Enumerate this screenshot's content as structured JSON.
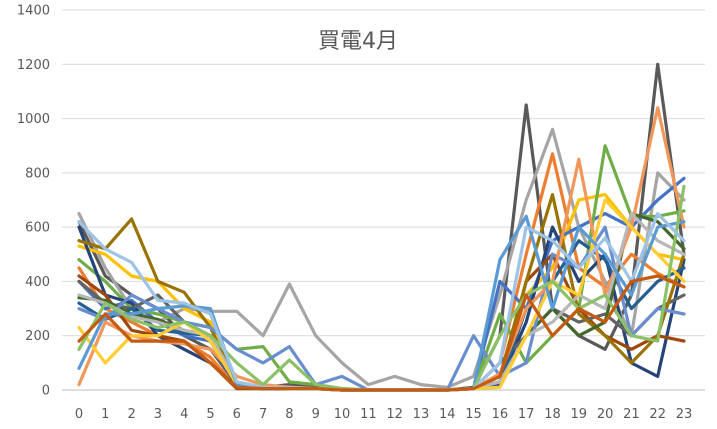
{
  "chart_data": {
    "type": "line",
    "title": "買電4月",
    "xlabel": "",
    "ylabel": "",
    "x": [
      0,
      1,
      2,
      3,
      4,
      5,
      6,
      7,
      8,
      9,
      10,
      11,
      12,
      13,
      14,
      15,
      16,
      17,
      18,
      19,
      20,
      21,
      22,
      23
    ],
    "x_tick_labels": [
      "0",
      "1",
      "2",
      "3",
      "4",
      "5",
      "6",
      "7",
      "8",
      "9",
      "10",
      "11",
      "12",
      "13",
      "14",
      "15",
      "16",
      "17",
      "18",
      "19",
      "20",
      "21",
      "22",
      "23"
    ],
    "ylim": [
      0,
      1400
    ],
    "y_ticks": [
      0,
      200,
      400,
      600,
      800,
      1000,
      1200,
      1400
    ],
    "y_tick_labels": [
      "0",
      "200",
      "400",
      "600",
      "800",
      "1000",
      "1200",
      "1400"
    ],
    "grid": "horizontal",
    "legend": "none",
    "series": [
      {
        "color": "#595959",
        "values": [
          620,
          420,
          350,
          300,
          200,
          150,
          20,
          10,
          20,
          10,
          0,
          0,
          0,
          0,
          0,
          10,
          200,
          1050,
          300,
          200,
          150,
          350,
          1200,
          500
        ]
      },
      {
        "color": "#ed7d31",
        "values": [
          450,
          300,
          250,
          200,
          180,
          120,
          10,
          5,
          5,
          5,
          0,
          0,
          0,
          0,
          0,
          5,
          100,
          500,
          870,
          450,
          380,
          500,
          430,
          380
        ]
      },
      {
        "color": "#a5a5a5",
        "values": [
          650,
          450,
          300,
          250,
          300,
          290,
          290,
          200,
          390,
          200,
          100,
          20,
          50,
          20,
          10,
          50,
          350,
          700,
          960,
          600,
          400,
          200,
          800,
          700
        ]
      },
      {
        "color": "#ffc000",
        "values": [
          530,
          500,
          420,
          400,
          300,
          250,
          20,
          10,
          5,
          5,
          0,
          0,
          0,
          0,
          0,
          5,
          50,
          350,
          450,
          700,
          720,
          600,
          500,
          480
        ]
      },
      {
        "color": "#4472c4",
        "values": [
          400,
          300,
          330,
          250,
          200,
          180,
          10,
          5,
          10,
          5,
          0,
          0,
          0,
          0,
          0,
          5,
          400,
          300,
          550,
          600,
          650,
          600,
          700,
          780
        ]
      },
      {
        "color": "#70ad47",
        "values": [
          480,
          400,
          300,
          280,
          250,
          230,
          150,
          160,
          30,
          20,
          5,
          0,
          0,
          0,
          0,
          5,
          280,
          100,
          200,
          300,
          900,
          640,
          640,
          660
        ]
      },
      {
        "color": "#264478",
        "values": [
          600,
          350,
          320,
          200,
          150,
          100,
          10,
          5,
          5,
          5,
          0,
          0,
          0,
          0,
          0,
          5,
          30,
          250,
          600,
          400,
          500,
          100,
          50,
          480
        ]
      },
      {
        "color": "#9e480e",
        "values": [
          420,
          350,
          220,
          200,
          180,
          100,
          5,
          5,
          5,
          5,
          0,
          0,
          0,
          0,
          0,
          5,
          20,
          400,
          500,
          300,
          200,
          150,
          200,
          180
        ]
      },
      {
        "color": "#636363",
        "values": [
          400,
          320,
          300,
          350,
          250,
          200,
          20,
          10,
          10,
          5,
          0,
          0,
          0,
          0,
          0,
          5,
          100,
          200,
          300,
          250,
          280,
          200,
          300,
          350
        ]
      },
      {
        "color": "#997300",
        "values": [
          550,
          520,
          630,
          400,
          360,
          230,
          20,
          10,
          5,
          5,
          0,
          0,
          0,
          0,
          0,
          5,
          50,
          400,
          720,
          280,
          200,
          100,
          200,
          500
        ]
      },
      {
        "color": "#255e91",
        "values": [
          320,
          260,
          300,
          220,
          210,
          200,
          10,
          5,
          5,
          5,
          0,
          0,
          0,
          0,
          0,
          5,
          20,
          300,
          400,
          550,
          480,
          300,
          400,
          450
        ]
      },
      {
        "color": "#43682b",
        "values": [
          340,
          330,
          280,
          260,
          220,
          200,
          10,
          5,
          5,
          5,
          0,
          0,
          0,
          0,
          0,
          5,
          30,
          200,
          300,
          200,
          250,
          650,
          620,
          520
        ]
      },
      {
        "color": "#698ed0",
        "values": [
          300,
          260,
          350,
          300,
          250,
          230,
          150,
          100,
          160,
          20,
          50,
          0,
          0,
          0,
          0,
          200,
          50,
          100,
          500,
          450,
          600,
          200,
          300,
          280
        ]
      },
      {
        "color": "#f1975a",
        "values": [
          20,
          250,
          200,
          180,
          170,
          150,
          50,
          20,
          10,
          5,
          0,
          0,
          0,
          0,
          0,
          5,
          60,
          300,
          400,
          850,
          350,
          600,
          1040,
          600
        ]
      },
      {
        "color": "#b7b7b7",
        "values": [
          350,
          320,
          270,
          250,
          220,
          200,
          30,
          10,
          10,
          5,
          0,
          0,
          0,
          0,
          0,
          5,
          30,
          200,
          250,
          350,
          300,
          650,
          550,
          500
        ]
      },
      {
        "color": "#ffcd33",
        "values": [
          230,
          100,
          200,
          200,
          250,
          180,
          20,
          10,
          5,
          5,
          0,
          0,
          0,
          0,
          0,
          5,
          10,
          200,
          400,
          350,
          700,
          600,
          500,
          400
        ]
      },
      {
        "color": "#5b9bd5",
        "values": [
          80,
          280,
          280,
          300,
          310,
          300,
          20,
          10,
          5,
          5,
          0,
          0,
          0,
          0,
          0,
          5,
          480,
          640,
          300,
          600,
          500,
          350,
          600,
          620
        ]
      },
      {
        "color": "#8cc168",
        "values": [
          150,
          320,
          260,
          230,
          250,
          200,
          100,
          20,
          110,
          20,
          5,
          0,
          0,
          0,
          0,
          5,
          200,
          350,
          400,
          300,
          350,
          200,
          180,
          750
        ]
      },
      {
        "color": "#9dc3e6",
        "values": [
          620,
          520,
          470,
          330,
          320,
          280,
          30,
          10,
          5,
          5,
          0,
          0,
          0,
          0,
          0,
          5,
          100,
          600,
          550,
          450,
          560,
          400,
          650,
          550
        ]
      },
      {
        "color": "#c55a11",
        "values": [
          180,
          280,
          180,
          180,
          180,
          100,
          10,
          5,
          5,
          5,
          0,
          0,
          0,
          0,
          0,
          5,
          50,
          350,
          200,
          300,
          250,
          400,
          420,
          380
        ]
      }
    ]
  }
}
